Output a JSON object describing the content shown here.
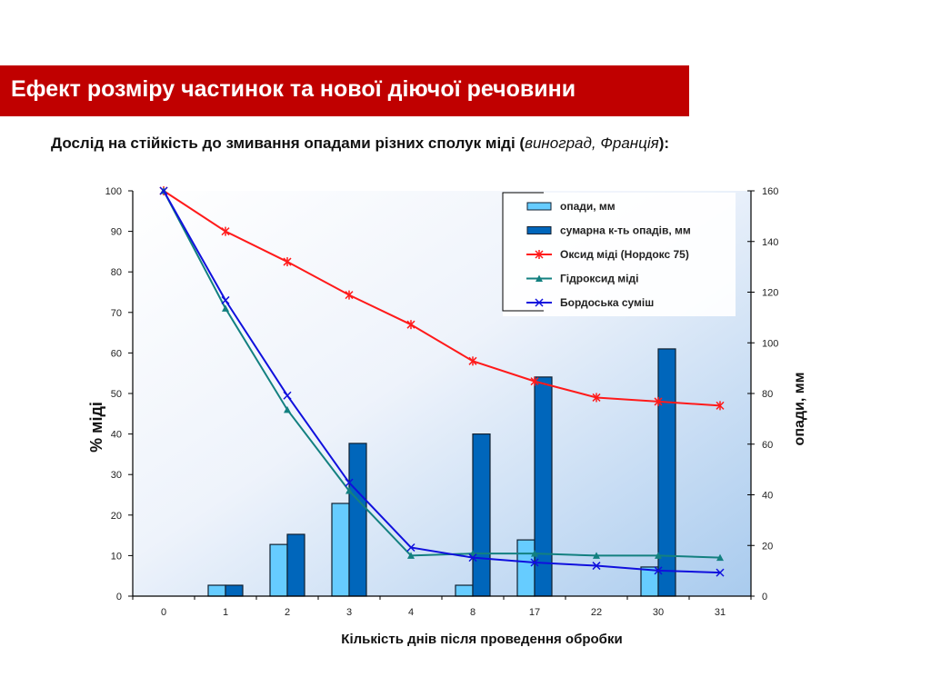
{
  "header": {
    "title": "Ефект розміру частинок та нової діючої речовини",
    "subtitle_main": "Дослід на стійкість до змивання опадами різних сполук міді (",
    "subtitle_italic": "виноград, Франція",
    "subtitle_end": "):"
  },
  "colors": {
    "title_bg": "#c00000",
    "bar_light": "#66ccff",
    "bar_dark": "#0066bb",
    "oxide": "#ff1a1a",
    "hydroxide": "#138080",
    "bordeaux": "#1010dd"
  },
  "chart_data": {
    "type": "bar+line",
    "title": "",
    "xlabel": "Кількість днів після проведення обробки",
    "ylabel": "% міді",
    "y2label": "опади, мм",
    "categories": [
      "0",
      "1",
      "2",
      "3",
      "4",
      "8",
      "17",
      "22",
      "30",
      "31"
    ],
    "ylim": [
      0,
      100
    ],
    "yticks": [
      0,
      10,
      20,
      30,
      40,
      50,
      60,
      70,
      80,
      90,
      100
    ],
    "y2lim": [
      0,
      160
    ],
    "y2ticks": [
      0,
      20,
      40,
      60,
      80,
      100,
      120,
      140,
      160
    ],
    "legend_position": "top-right",
    "bar_series": [
      {
        "name": "опади, мм",
        "axis": "right",
        "color_key": "bar_light",
        "values": [
          0,
          4.3,
          20.4,
          36.6,
          0,
          4.3,
          22.2,
          0,
          11.5,
          0
        ]
      },
      {
        "name": "сумарна к-ть опадів, мм",
        "axis": "right",
        "color_key": "bar_dark",
        "values": [
          0,
          4.3,
          24.4,
          60.3,
          0,
          64,
          86.5,
          0,
          97.6,
          0
        ]
      }
    ],
    "line_series": [
      {
        "name": "Оксид міді (Нордокс 75)",
        "axis": "left",
        "color_key": "oxide",
        "marker": "star",
        "values": [
          100,
          90,
          82.5,
          74.3,
          67,
          58,
          53,
          49,
          48,
          47
        ]
      },
      {
        "name": "Гідроксид міді",
        "axis": "left",
        "color_key": "hydroxide",
        "marker": "triangle",
        "values": [
          100,
          71,
          46,
          26,
          10,
          10.5,
          10.5,
          10,
          10,
          9.5
        ]
      },
      {
        "name": "Бордоська суміш",
        "axis": "left",
        "color_key": "bordeaux",
        "marker": "x",
        "values": [
          100,
          73,
          49.5,
          28,
          12,
          9.5,
          8.3,
          7.5,
          6.3,
          5.8
        ]
      }
    ]
  }
}
